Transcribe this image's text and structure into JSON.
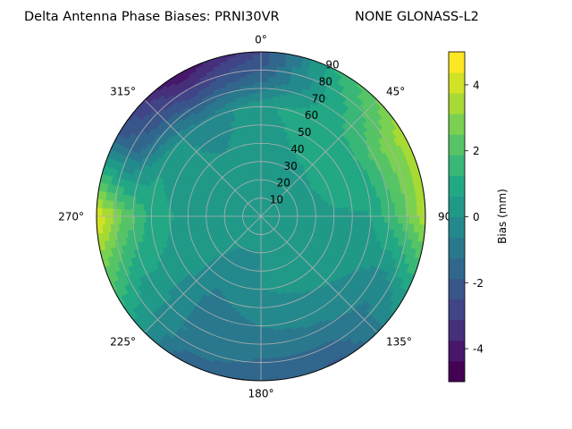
{
  "chart_data": {
    "type": "heatmap",
    "projection": "polar",
    "title_left": "Delta Antenna Phase Biases: PRNI30VR",
    "title_right": "NONE GLONASS-L2",
    "theta_zero_location": "N",
    "theta_direction": "clockwise",
    "theta_tick_labels": [
      "0°",
      "45°",
      "90",
      "135°",
      "180°",
      "225°",
      "270°",
      "315°"
    ],
    "theta_tick_degrees": [
      0,
      45,
      90,
      135,
      180,
      225,
      270,
      315
    ],
    "radial_ticks": [
      10,
      20,
      30,
      40,
      50,
      60,
      70,
      80,
      90
    ],
    "radial_tick_labels": [
      "10",
      "20",
      "30",
      "40",
      "50",
      "60",
      "70",
      "80",
      "90"
    ],
    "rlim": [
      0,
      90
    ],
    "grid": true,
    "colormap": "viridis",
    "colorbar": {
      "label": "Bias (mm)",
      "ticks": [
        "-4",
        "-2",
        "0",
        "2",
        "4"
      ],
      "tick_values": [
        -4,
        -2,
        0,
        2,
        4
      ],
      "range": [
        -5,
        5
      ],
      "levels": [
        -5,
        -4.375,
        -3.75,
        -3.125,
        -2.5,
        -1.875,
        -1.25,
        -0.625,
        0,
        0.625,
        1.25,
        1.875,
        2.5,
        3.125,
        3.75,
        4.375,
        5
      ]
    },
    "field_samples_azimuth_deg": [
      0,
      30,
      60,
      90,
      120,
      150,
      180,
      210,
      240,
      270,
      300,
      330
    ],
    "field_samples_radius": [
      0,
      20,
      40,
      60,
      75,
      90
    ],
    "field_samples_bias_mm": [
      [
        0.2,
        0.2,
        0.2,
        0.2,
        0.2,
        0.2,
        0.2,
        0.2,
        0.2,
        0.2,
        0.2,
        0.2
      ],
      [
        0.0,
        0.0,
        0.1,
        0.3,
        0.3,
        0.2,
        0.0,
        0.0,
        0.2,
        0.3,
        0.2,
        0.0
      ],
      [
        0.3,
        0.7,
        1.0,
        0.5,
        0.3,
        0.2,
        0.0,
        -0.5,
        0.3,
        0.4,
        0.2,
        0.0
      ],
      [
        0.5,
        1.0,
        1.2,
        0.6,
        0.0,
        -0.3,
        -0.6,
        -1.0,
        0.5,
        1.0,
        0.5,
        -0.5
      ],
      [
        -1.5,
        0.7,
        2.5,
        2.0,
        -0.5,
        -1.0,
        -1.2,
        -0.8,
        0.5,
        2.5,
        -1.5,
        -2.5
      ],
      [
        -2.5,
        1.5,
        3.5,
        3.5,
        0.5,
        -2.0,
        -1.5,
        -1.5,
        1.5,
        4.5,
        -2.0,
        -4.5
      ]
    ]
  }
}
